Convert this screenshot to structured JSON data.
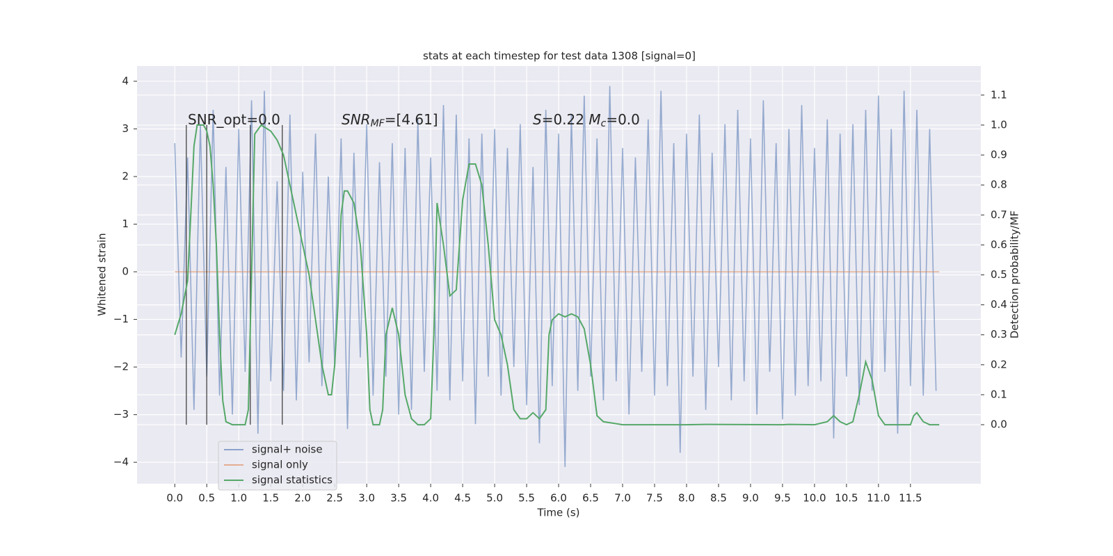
{
  "chart_data": {
    "type": "line",
    "title": "stats at each timestep for test data 1308 [signal=0]",
    "xlabel": "Time (s)",
    "ylabel": "Whitened strain",
    "y2label": "Detection probability/MF",
    "annotations": [
      [
        "SNR_opt=0.0"
      ],
      [
        "SNR",
        "MF",
        "=[4.61]"
      ],
      [
        "S",
        "=0.22   ",
        "M",
        "c",
        "=0.0"
      ]
    ],
    "xlim": [
      -0.59,
      12.6
    ],
    "ylim": [
      -4.45,
      4.32
    ],
    "y2lim": [
      -0.197,
      1.197
    ],
    "xticks": [
      {
        "value": 0,
        "label": "0.0"
      },
      0.5,
      {
        "value": 1,
        "label": "1.0"
      },
      1.5,
      {
        "value": 2,
        "label": "2.0"
      },
      2.5,
      {
        "value": 3,
        "label": "3.0"
      },
      3.5,
      {
        "value": 4,
        "label": "4.0"
      },
      4.5,
      {
        "value": 5,
        "label": "5.0"
      },
      5.5,
      {
        "value": 6,
        "label": "6.0"
      },
      6.5,
      {
        "value": 7,
        "label": "7.0"
      },
      7.5,
      {
        "value": 8,
        "label": "8.0"
      },
      8.5,
      {
        "value": 9,
        "label": "9.0"
      },
      9.5,
      {
        "value": 10,
        "label": "10.0"
      },
      10.5,
      {
        "value": 11,
        "label": "11.0"
      },
      11.5
    ],
    "yticks": [
      {
        "value": -4,
        "label": "−4"
      },
      {
        "value": -3,
        "label": "−3"
      },
      {
        "value": -2,
        "label": "−2"
      },
      {
        "value": -1,
        "label": "−1"
      },
      0,
      1,
      2,
      3,
      4
    ],
    "y2ticks": [
      {
        "value": 0,
        "label": "0.0"
      },
      0.1,
      0.2,
      0.3,
      0.4,
      0.5,
      0.6,
      0.7,
      0.8,
      0.9,
      {
        "value": 1,
        "label": "1.0"
      },
      1.1
    ],
    "grid": true,
    "legend": "lower left",
    "vlines": [
      0.18,
      0.5,
      1.18,
      1.68
    ],
    "vline_range": [
      0,
      1
    ],
    "vline_color": "#333333",
    "series": [
      {
        "name": "signal+ noise",
        "color": "#4c72b0",
        "x": [
          0.0,
          0.1,
          0.2,
          0.3,
          0.4,
          0.5,
          0.6,
          0.7,
          0.8,
          0.9,
          1.0,
          1.1,
          1.2,
          1.3,
          1.4,
          1.5,
          1.6,
          1.7,
          1.8,
          1.9,
          2.0,
          2.1,
          2.2,
          2.3,
          2.4,
          2.5,
          2.6,
          2.7,
          2.8,
          2.9,
          3.0,
          3.1,
          3.2,
          3.3,
          3.4,
          3.5,
          3.6,
          3.7,
          3.8,
          3.9,
          4.0,
          4.1,
          4.2,
          4.3,
          4.4,
          4.5,
          4.6,
          4.7,
          4.8,
          4.9,
          5.0,
          5.1,
          5.2,
          5.3,
          5.4,
          5.5,
          5.6,
          5.7,
          5.8,
          5.9,
          6.0,
          6.1,
          6.2,
          6.3,
          6.4,
          6.5,
          6.6,
          6.7,
          6.8,
          6.9,
          7.0,
          7.1,
          7.2,
          7.3,
          7.4,
          7.5,
          7.6,
          7.7,
          7.8,
          7.9,
          8.0,
          8.1,
          8.2,
          8.3,
          8.4,
          8.5,
          8.6,
          8.7,
          8.8,
          8.9,
          9.0,
          9.1,
          9.2,
          9.3,
          9.4,
          9.5,
          9.6,
          9.7,
          9.8,
          9.9,
          10.0,
          10.1,
          10.2,
          10.3,
          10.4,
          10.5,
          10.6,
          10.7,
          10.8,
          10.9,
          11.0,
          11.1,
          11.2,
          11.3,
          11.4,
          11.5,
          11.6,
          11.7,
          11.8,
          11.9
        ],
        "values": [
          2.7,
          -1.8,
          2.4,
          -2.9,
          3.1,
          -2.2,
          3.4,
          -2.6,
          2.2,
          -3.0,
          3.0,
          -2.1,
          3.6,
          -3.4,
          3.8,
          -2.3,
          1.9,
          -2.5,
          3.3,
          -2.7,
          2.1,
          -1.9,
          2.9,
          -2.4,
          2.0,
          -2.0,
          2.8,
          -3.3,
          2.5,
          -1.8,
          3.1,
          -2.6,
          2.3,
          -2.2,
          2.7,
          -3.0,
          2.6,
          -2.9,
          3.2,
          -2.1,
          2.4,
          -2.5,
          3.5,
          -2.7,
          3.3,
          -2.3,
          2.8,
          -3.2,
          2.9,
          -2.2,
          3.0,
          -2.6,
          2.6,
          -2.0,
          3.1,
          -2.8,
          2.2,
          -3.6,
          3.4,
          -2.4,
          2.9,
          -4.1,
          3.3,
          -2.5,
          3.7,
          -2.2,
          2.8,
          -2.7,
          3.9,
          -2.3,
          2.6,
          -3.0,
          2.4,
          -2.1,
          3.2,
          -2.6,
          3.8,
          -2.4,
          2.7,
          -3.8,
          2.9,
          -2.2,
          3.3,
          -2.9,
          2.5,
          -2.0,
          3.1,
          -2.7,
          3.4,
          -2.3,
          2.8,
          -3.0,
          3.6,
          -2.1,
          2.7,
          -3.1,
          3.0,
          -2.6,
          3.5,
          -2.4,
          2.6,
          -2.3,
          3.2,
          -3.5,
          2.9,
          -2.2,
          3.1,
          -2.8,
          3.4,
          -2.5,
          3.7,
          -2.1,
          3.0,
          -3.4,
          3.8,
          -2.4,
          3.4,
          -2.6,
          3.0,
          -2.5
        ]
      },
      {
        "name": "signal only",
        "color": "#dd8452",
        "x": [
          0,
          11.95
        ],
        "values": [
          0,
          0
        ]
      },
      {
        "name": "signal statistics",
        "color": "#55a868",
        "axis": "y2",
        "x": [
          0.0,
          0.1,
          0.2,
          0.25,
          0.3,
          0.35,
          0.45,
          0.5,
          0.55,
          0.6,
          0.65,
          0.7,
          0.75,
          0.8,
          0.9,
          1.1,
          1.15,
          1.2,
          1.25,
          1.35,
          1.5,
          1.6,
          1.7,
          1.8,
          1.9,
          2.0,
          2.1,
          2.2,
          2.3,
          2.4,
          2.45,
          2.5,
          2.55,
          2.6,
          2.65,
          2.7,
          2.8,
          2.9,
          3.0,
          3.05,
          3.1,
          3.2,
          3.25,
          3.3,
          3.4,
          3.5,
          3.6,
          3.7,
          3.8,
          3.9,
          4.0,
          4.05,
          4.1,
          4.2,
          4.3,
          4.4,
          4.5,
          4.6,
          4.7,
          4.8,
          4.9,
          5.0,
          5.1,
          5.2,
          5.3,
          5.4,
          5.5,
          5.6,
          5.7,
          5.8,
          5.85,
          5.9,
          6.0,
          6.1,
          6.2,
          6.3,
          6.4,
          6.5,
          6.6,
          6.7,
          7.0,
          8.0,
          8.3,
          9.5,
          9.6,
          10.0,
          10.2,
          10.3,
          10.4,
          10.5,
          10.6,
          10.7,
          10.8,
          10.9,
          11.0,
          11.1,
          11.5,
          11.55,
          11.6,
          11.7,
          11.8,
          11.95
        ],
        "values": [
          0.3,
          0.37,
          0.48,
          0.7,
          0.93,
          1.0,
          1.0,
          0.98,
          0.93,
          0.8,
          0.6,
          0.3,
          0.08,
          0.01,
          0.0,
          0.0,
          0.05,
          0.5,
          0.97,
          1.0,
          0.98,
          0.95,
          0.9,
          0.8,
          0.7,
          0.6,
          0.5,
          0.35,
          0.2,
          0.1,
          0.1,
          0.2,
          0.4,
          0.7,
          0.78,
          0.78,
          0.74,
          0.6,
          0.3,
          0.05,
          0.0,
          0.0,
          0.05,
          0.3,
          0.39,
          0.3,
          0.1,
          0.02,
          0.0,
          0.0,
          0.02,
          0.3,
          0.74,
          0.6,
          0.43,
          0.45,
          0.75,
          0.87,
          0.87,
          0.8,
          0.6,
          0.35,
          0.3,
          0.2,
          0.05,
          0.02,
          0.02,
          0.04,
          0.02,
          0.05,
          0.3,
          0.35,
          0.37,
          0.36,
          0.37,
          0.36,
          0.32,
          0.2,
          0.03,
          0.01,
          0.0,
          0.0,
          0.001,
          0.0,
          0.001,
          0.0,
          0.01,
          0.03,
          0.01,
          0.0,
          0.01,
          0.1,
          0.21,
          0.15,
          0.03,
          0.0,
          0.0,
          0.03,
          0.04,
          0.01,
          0.0,
          0.0
        ]
      }
    ]
  }
}
